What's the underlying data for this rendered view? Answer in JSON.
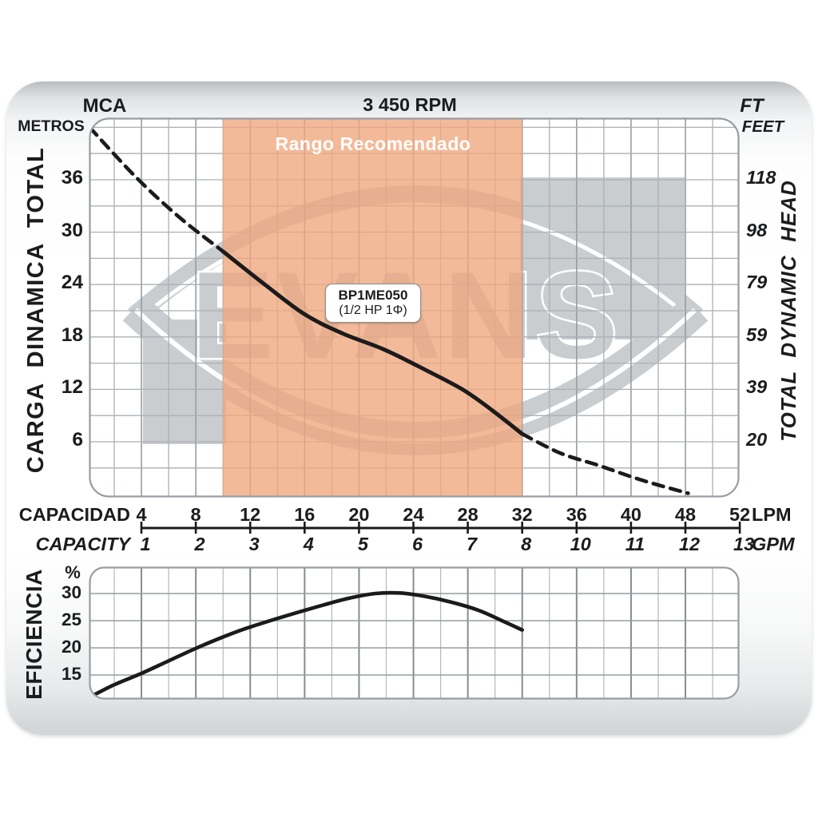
{
  "header": {
    "unit_left_1": "MCA",
    "unit_left_2": "METROS",
    "title": "3 450 RPM",
    "unit_right_1": "FT",
    "unit_right_2": "FEET"
  },
  "axis_labels": {
    "y_left": "CARGA  DINAMICA  TOTAL",
    "y_right": "TOTAL  DYNAMIC  HEAD",
    "x_top": "CAPACIDAD",
    "x_bottom": "CAPACITY",
    "x_unit_top": "LPM",
    "x_unit_bottom": "GPM",
    "eff": "EFICIENCIA",
    "eff_unit": "%"
  },
  "band": {
    "label": "Rango Recomendado"
  },
  "pump_box": {
    "model": "BP1ME050",
    "power": "(1/2 HP 1Φ)"
  },
  "watermark": {
    "text": "EVANS",
    "registered": "®"
  },
  "colors": {
    "recommended_band": "#f0a67c",
    "watermark": "#c9cdd0",
    "curve": "#1b1b1b",
    "grid_minor": "#abb0b4",
    "grid_major": "#969da2",
    "plot_border": "#979da2",
    "eff_grid_thin": "#b4b8bb",
    "eff_grid_thick": "#868d92"
  },
  "chart_data": [
    {
      "name": "head_curve_chart",
      "type": "line",
      "title": "3 450 RPM",
      "x_axis": {
        "labels": [
          "CAPACIDAD",
          "CAPACITY"
        ],
        "units": [
          "LPM",
          "GPM"
        ],
        "lpm_ticks": [
          4,
          8,
          12,
          16,
          20,
          24,
          28,
          32,
          36,
          40,
          48,
          52
        ],
        "gpm_ticks": [
          1,
          2,
          3,
          4,
          5,
          6,
          7,
          8,
          10,
          11,
          12,
          13
        ]
      },
      "y_axis": {
        "label_left": "CARGA DINAMICA TOTAL (MCA METROS)",
        "label_right": "TOTAL DYNAMIC HEAD (FT FEET)",
        "m_ticks": [
          36,
          30,
          24,
          18,
          12,
          6
        ],
        "ft_ticks": [
          118,
          98,
          79,
          59,
          39,
          20
        ],
        "range_m": [
          0,
          43
        ]
      },
      "recommended_range": {
        "label": "Rango Recomendado",
        "gpm": [
          2.5,
          8
        ],
        "lpm": [
          10,
          32
        ]
      },
      "series": [
        {
          "name": "BP1ME050 (1/2 HP 1Φ)",
          "solid_range_gpm": [
            2.5,
            8
          ],
          "points_gpm_m": [
            [
              0.05,
              42.0
            ],
            [
              0.9,
              36.3
            ],
            [
              1.7,
              31.7
            ],
            [
              2.5,
              27.8
            ],
            [
              3.25,
              24.1
            ],
            [
              4.0,
              20.6
            ],
            [
              4.7,
              18.4
            ],
            [
              5.45,
              16.6
            ],
            [
              6.2,
              14.3
            ],
            [
              6.9,
              12.0
            ],
            [
              7.45,
              9.6
            ],
            [
              8.0,
              6.9
            ],
            [
              8.7,
              4.7
            ],
            [
              9.4,
              3.3
            ],
            [
              10.2,
              1.6
            ],
            [
              11.05,
              0.1
            ]
          ]
        }
      ],
      "grid": true
    },
    {
      "name": "efficiency_chart",
      "type": "line",
      "y_axis": {
        "label": "EFICIENCIA",
        "unit": "%",
        "ticks": [
          30,
          25,
          20,
          15
        ],
        "range_pct": [
          10.5,
          35
        ]
      },
      "series": [
        {
          "name": "efficiency",
          "points_gpm_pct": [
            [
              0.1,
              11.2
            ],
            [
              0.5,
              13.2
            ],
            [
              1.0,
              15.3
            ],
            [
              1.5,
              17.6
            ],
            [
              2.0,
              19.9
            ],
            [
              2.45,
              21.8
            ],
            [
              2.9,
              23.5
            ],
            [
              3.4,
              25.1
            ],
            [
              3.9,
              26.6
            ],
            [
              4.35,
              27.9
            ],
            [
              4.8,
              29.1
            ],
            [
              5.3,
              30.0
            ],
            [
              5.75,
              30.1
            ],
            [
              6.2,
              29.5
            ],
            [
              6.7,
              28.4
            ],
            [
              7.2,
              26.9
            ],
            [
              7.65,
              24.9
            ],
            [
              8.0,
              23.3
            ]
          ]
        }
      ],
      "grid": true
    }
  ]
}
